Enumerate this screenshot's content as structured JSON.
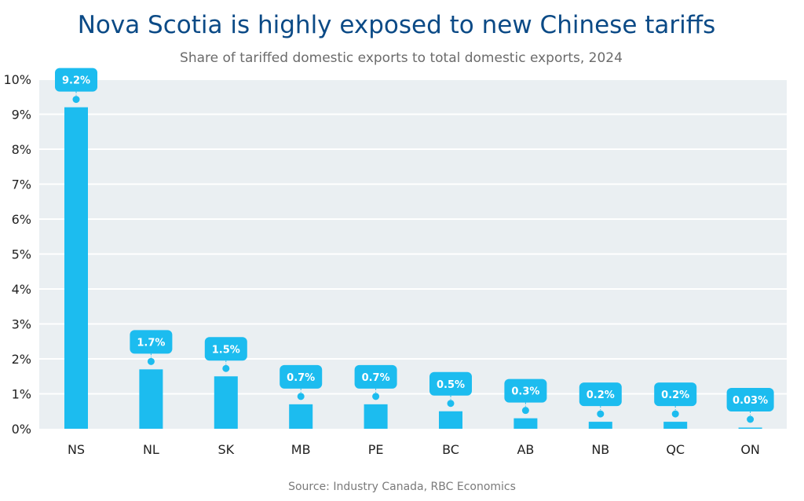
{
  "title": "Nova Scotia is highly exposed to new Chinese tariffs",
  "subtitle": "Share of tariffed domestic exports to total domestic exports, 2024",
  "source": "Source: Industry Canada, RBC Economics",
  "colors": {
    "bar": "#1cbcef",
    "plot_bg": "#eaeff2",
    "grid": "#ffffff",
    "label_bg": "#1cbcef",
    "label_text": "#ffffff",
    "axis_text": "#222222"
  },
  "chart_data": {
    "type": "bar",
    "categories": [
      "NS",
      "NL",
      "SK",
      "MB",
      "PE",
      "BC",
      "AB",
      "NB",
      "QC",
      "ON"
    ],
    "values": [
      9.2,
      1.7,
      1.5,
      0.7,
      0.7,
      0.5,
      0.3,
      0.2,
      0.2,
      0.03
    ],
    "data_labels": [
      "9.2%",
      "1.7%",
      "1.5%",
      "0.7%",
      "0.7%",
      "0.5%",
      "0.3%",
      "0.2%",
      "0.2%",
      "0.03%"
    ],
    "yticks": [
      "0%",
      "1%",
      "2%",
      "3%",
      "4%",
      "5%",
      "6%",
      "7%",
      "8%",
      "9%",
      "10%"
    ],
    "ylim": [
      0,
      10
    ],
    "grid": true,
    "legend": false
  }
}
